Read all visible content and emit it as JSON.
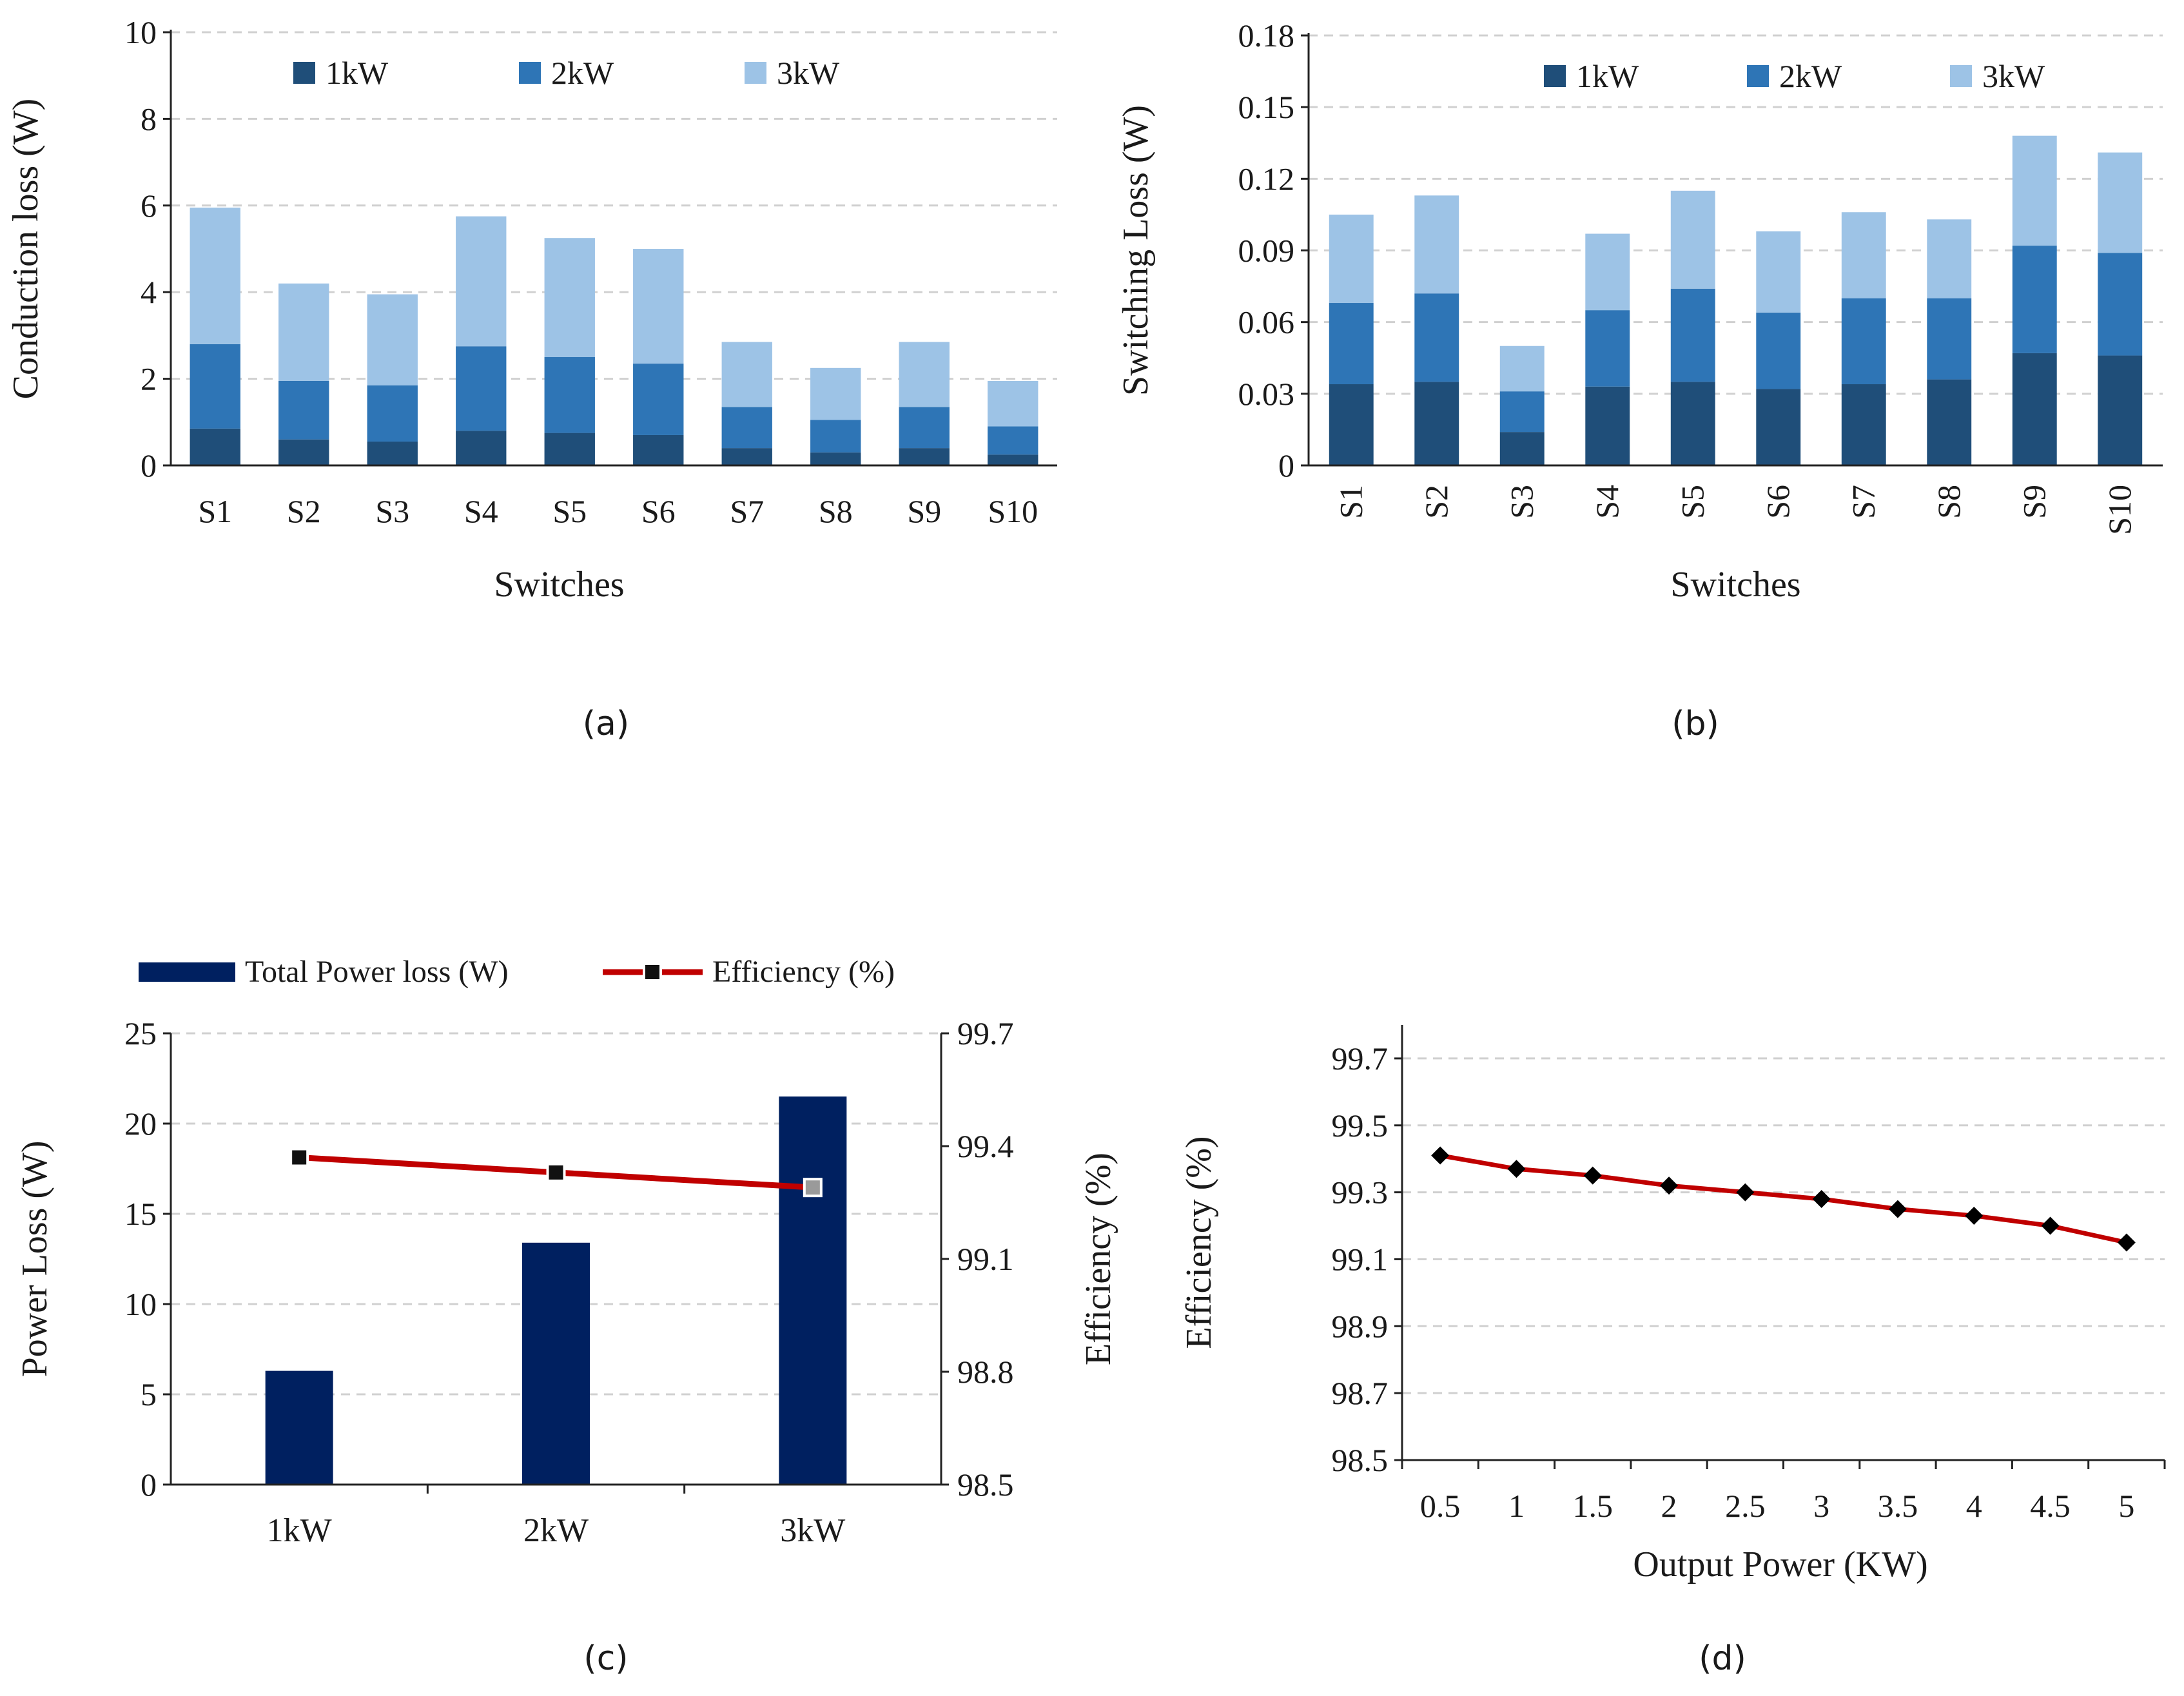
{
  "chart_data": [
    {
      "type": "bar",
      "stacked": true,
      "caption": "(a)",
      "xlabel": "Switches",
      "ylabel": "Conduction loss (W)",
      "ylim": [
        0,
        10
      ],
      "yticks": [
        "0",
        "2",
        "4",
        "6",
        "8",
        "10"
      ],
      "grid": true,
      "legend": "top",
      "categories": [
        "S1",
        "S2",
        "S3",
        "S4",
        "S5",
        "S6",
        "S7",
        "S8",
        "S9",
        "S10"
      ],
      "series": [
        {
          "name": "1kW",
          "color": "#1f4e79",
          "values": [
            0.85,
            0.6,
            0.55,
            0.8,
            0.75,
            0.7,
            0.4,
            0.3,
            0.4,
            0.25
          ]
        },
        {
          "name": "2kW",
          "color": "#2e75b6",
          "values": [
            1.95,
            1.35,
            1.3,
            1.95,
            1.75,
            1.65,
            0.95,
            0.75,
            0.95,
            0.65
          ]
        },
        {
          "name": "3kW",
          "color": "#9dc3e6",
          "values": [
            3.15,
            2.25,
            2.1,
            3.0,
            2.75,
            2.65,
            1.5,
            1.2,
            1.5,
            1.05
          ]
        }
      ]
    },
    {
      "type": "bar",
      "stacked": true,
      "caption": "(b)",
      "xlabel": "Switches",
      "ylabel": "Switching Loss (W)",
      "ylim": [
        0,
        0.18
      ],
      "yticks": [
        "0",
        "0.03",
        "0.06",
        "0.09",
        "0.12",
        "0.15",
        "0.18"
      ],
      "grid": true,
      "legend": "top",
      "categories": [
        "S1",
        "S2",
        "S3",
        "S4",
        "S5",
        "S6",
        "S7",
        "S8",
        "S9",
        "S10"
      ],
      "series": [
        {
          "name": "1kW",
          "color": "#1f4e79",
          "values": [
            0.034,
            0.035,
            0.014,
            0.033,
            0.035,
            0.032,
            0.034,
            0.036,
            0.047,
            0.046
          ]
        },
        {
          "name": "2kW",
          "color": "#2e75b6",
          "values": [
            0.034,
            0.037,
            0.017,
            0.032,
            0.039,
            0.032,
            0.036,
            0.034,
            0.045,
            0.043
          ]
        },
        {
          "name": "3kW",
          "color": "#9dc3e6",
          "values": [
            0.037,
            0.041,
            0.019,
            0.032,
            0.041,
            0.034,
            0.036,
            0.033,
            0.046,
            0.042
          ]
        }
      ]
    },
    {
      "type": "bar",
      "caption": "(c)",
      "xlabel": "",
      "ylabel": "Power Loss (W)",
      "y2label": "Efficiency (%)",
      "ylim": [
        0,
        25
      ],
      "y2lim": [
        98.5,
        99.7
      ],
      "yticks": [
        "0",
        "5",
        "10",
        "15",
        "20",
        "25"
      ],
      "y2ticks": [
        "98.5",
        "98.8",
        "99.1",
        "99.4",
        "99.7"
      ],
      "grid": true,
      "legend": "top",
      "categories": [
        "1kW",
        "2kW",
        "3kW"
      ],
      "series": [
        {
          "name": "Total Power loss (W)",
          "type": "bar",
          "axis": "left",
          "color": "#002060",
          "values": [
            6.3,
            13.4,
            21.5
          ]
        },
        {
          "name": "Efficiency (%)",
          "type": "line",
          "axis": "right",
          "color": "#c00000",
          "values": [
            99.37,
            99.33,
            99.29
          ]
        }
      ]
    },
    {
      "type": "line",
      "caption": "(d)",
      "xlabel": "Output Power (KW)",
      "ylabel": "Efficiency (%)",
      "ylim": [
        98.5,
        99.8
      ],
      "yticks": [
        "98.5",
        "98.7",
        "98.9",
        "99.1",
        "99.3",
        "99.5",
        "99.7"
      ],
      "xticks": [
        "0.5",
        "1",
        "1.5",
        "2",
        "2.5",
        "3",
        "3.5",
        "4",
        "4.5",
        "5"
      ],
      "grid": true,
      "series": [
        {
          "name": "Efficiency",
          "color": "#c00000",
          "marker_color": "#000000",
          "x": [
            0.5,
            1,
            1.5,
            2,
            2.5,
            3,
            3.5,
            4,
            4.5,
            5
          ],
          "values": [
            99.41,
            99.37,
            99.35,
            99.32,
            99.3,
            99.28,
            99.25,
            99.23,
            99.2,
            99.15
          ]
        }
      ]
    }
  ]
}
